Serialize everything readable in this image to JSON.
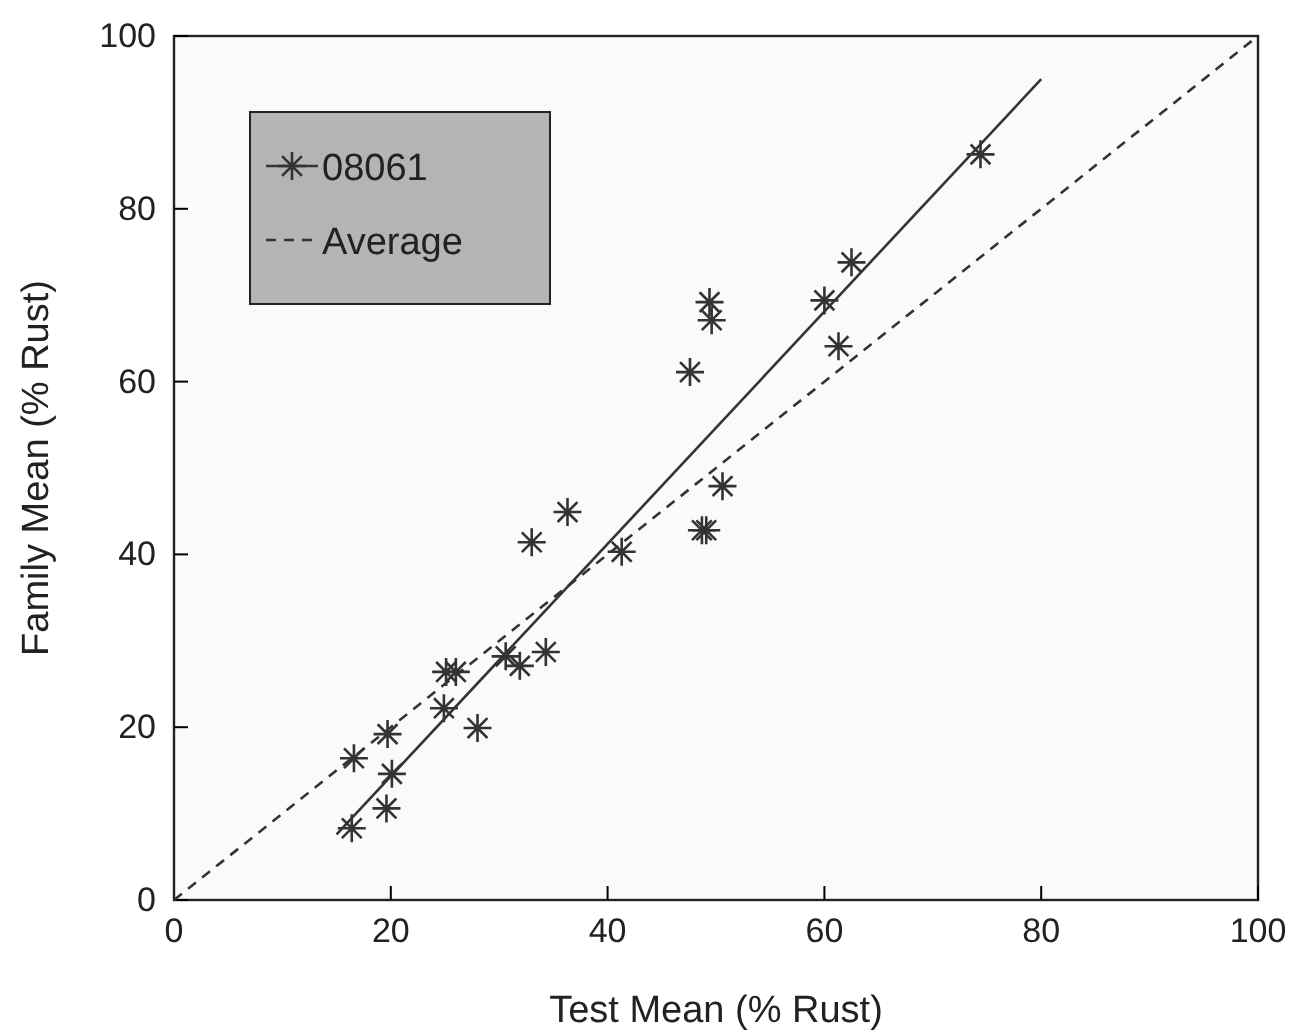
{
  "chart_data": {
    "type": "scatter",
    "xlabel": "Test Mean (% Rust)",
    "ylabel": "Family Mean (% Rust)",
    "xlim": [
      0,
      100
    ],
    "ylim": [
      0,
      100
    ],
    "xticks": [
      0,
      20,
      40,
      60,
      80,
      100
    ],
    "yticks": [
      0,
      20,
      40,
      60,
      80,
      100
    ],
    "grid": false,
    "legend": "top left",
    "marker": "cross",
    "series": [
      {
        "name": "08061",
        "color": "#333333",
        "x": [
          16.4,
          16.6,
          19.6,
          20.1,
          19.7,
          24.9,
          25.1,
          26.0,
          28.0,
          30.6,
          31.9,
          34.3,
          33.0,
          36.3,
          41.3,
          48.7,
          49.1,
          50.6,
          47.6,
          49.4,
          49.6,
          60.0,
          61.3,
          62.5,
          74.4
        ],
        "values": [
          8.3,
          16.4,
          10.6,
          14.6,
          19.2,
          22.2,
          26.4,
          26.4,
          19.9,
          28.2,
          27.1,
          28.7,
          41.4,
          44.9,
          40.3,
          42.8,
          42.8,
          47.9,
          61.1,
          69.2,
          67.1,
          69.4,
          64.1,
          73.8,
          86.3
        ]
      },
      {
        "type": "line",
        "color": "#333333",
        "line_style": "solid",
        "marker": "none",
        "x": [
          15,
          80
        ],
        "values": [
          7.6,
          95
        ]
      },
      {
        "name": "Average",
        "type": "line",
        "color": "#333333",
        "line_style": "dashed",
        "marker": "none",
        "x": [
          0,
          100
        ],
        "values": [
          0,
          100
        ]
      }
    ]
  }
}
